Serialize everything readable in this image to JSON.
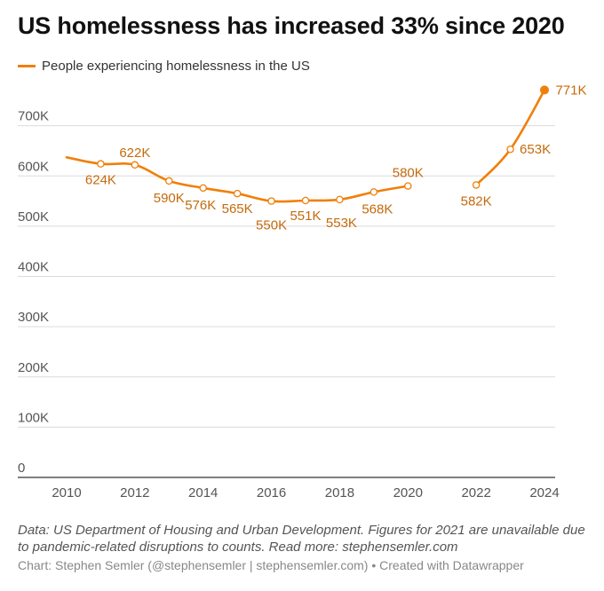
{
  "title": "US homelessness has increased 33% since 2020",
  "legend": {
    "label": "People experiencing homelessness in the US",
    "color": "#f07f09"
  },
  "note": "Data: US Department of Housing and Urban Development. Figures for 2021 are unavailable due to pandemic-related disruptions to counts. Read more: stephensemler.com",
  "credit": "Chart: Stephen Semler (@stephensemler | stephensemler.com) • Created with Datawrapper",
  "chart_data": {
    "type": "line",
    "title": "US homelessness has increased 33% since 2020",
    "xlabel": "",
    "ylabel": "",
    "xlim": [
      2010,
      2024
    ],
    "ylim": [
      0,
      780000
    ],
    "y_ticks": [
      0,
      100000,
      200000,
      300000,
      400000,
      500000,
      600000,
      700000
    ],
    "y_tick_labels": [
      "0",
      "100K",
      "200K",
      "300K",
      "400K",
      "500K",
      "600K",
      "700K"
    ],
    "x_ticks": [
      2010,
      2012,
      2014,
      2016,
      2018,
      2020,
      2022,
      2024
    ],
    "x_tick_labels": [
      "2010",
      "2012",
      "2014",
      "2016",
      "2018",
      "2020",
      "2022",
      "2024"
    ],
    "grid": true,
    "series": [
      {
        "name": "People experiencing homelessness in the US",
        "color": "#f07f09",
        "segments": [
          [
            {
              "x": 2010,
              "y": 637000,
              "label": ""
            },
            {
              "x": 2011,
              "y": 624000,
              "label": "624K"
            },
            {
              "x": 2012,
              "y": 622000,
              "label": "622K"
            },
            {
              "x": 2013,
              "y": 590000,
              "label": "590K"
            },
            {
              "x": 2014,
              "y": 576000,
              "label": "576K"
            },
            {
              "x": 2015,
              "y": 565000,
              "label": "565K"
            },
            {
              "x": 2016,
              "y": 550000,
              "label": "550K"
            },
            {
              "x": 2017,
              "y": 551000,
              "label": "551K"
            },
            {
              "x": 2018,
              "y": 553000,
              "label": "553K"
            },
            {
              "x": 2019,
              "y": 568000,
              "label": "568K"
            },
            {
              "x": 2020,
              "y": 580000,
              "label": "580K"
            }
          ],
          [
            {
              "x": 2022,
              "y": 582000,
              "label": "582K"
            },
            {
              "x": 2023,
              "y": 653000,
              "label": "653K"
            },
            {
              "x": 2024,
              "y": 771000,
              "label": "771K"
            }
          ]
        ]
      }
    ]
  }
}
